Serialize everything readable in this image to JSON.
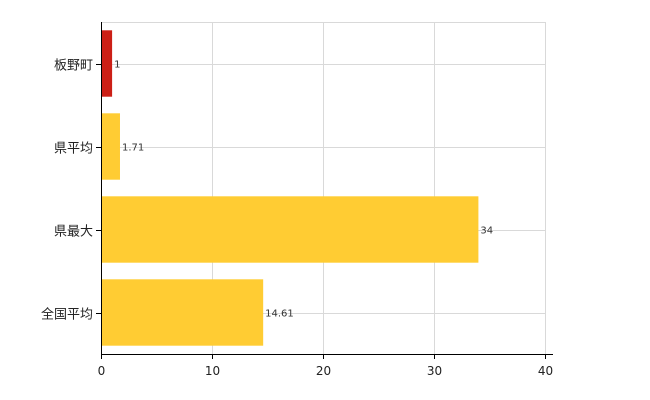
{
  "chart_data": {
    "type": "bar",
    "orientation": "horizontal",
    "categories": [
      "板野町",
      "県平均",
      "県最大",
      "全国平均"
    ],
    "values": [
      1,
      1.71,
      34,
      14.61
    ],
    "data_labels": [
      "1",
      "1.71",
      "34",
      "14.61"
    ],
    "bar_colors": [
      "#cc1f16",
      "#ffcc33",
      "#ffcc33",
      "#ffcc33"
    ],
    "xlim": [
      0,
      40
    ],
    "xticks": [
      0,
      10,
      20,
      30,
      40
    ],
    "xtick_labels": [
      "0",
      "10",
      "20",
      "30",
      "40"
    ],
    "grid": true,
    "grid_color": "#d9d9d9",
    "title": "",
    "xlabel": "",
    "ylabel": ""
  }
}
